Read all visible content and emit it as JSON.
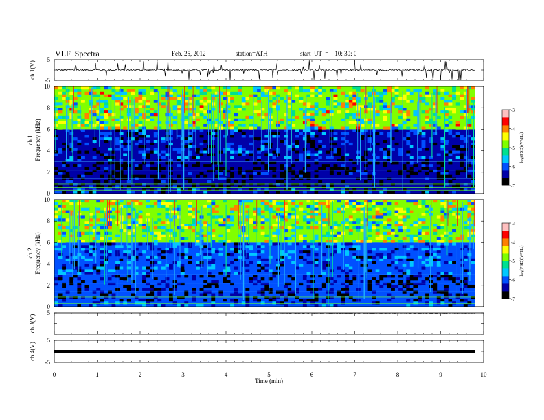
{
  "header": {
    "title": "VLF  Spectra",
    "date": "Feb. 25, 2012",
    "station": "station=ATH",
    "start": "start  UT  =    10: 30: 0"
  },
  "chart_data": [
    {
      "type": "line",
      "id": "ch1",
      "ylabel": "ch.1(V)",
      "ylim": [
        -5,
        5
      ],
      "yticks": [
        "5",
        "-5"
      ],
      "description_values": {
        "baseline": 0,
        "spike_max": 5,
        "spike_min": -5
      },
      "series": [
        {
          "values_summary": "noisy signal near 0 V with frequent spikes up to about ±5 V",
          "baseline": 0
        }
      ]
    },
    {
      "type": "heatmap",
      "id": "ch1-spectrogram",
      "ylabel_lines": [
        "ch.1",
        "Frequency  (kHz)"
      ],
      "ylim": [
        0,
        10
      ],
      "yticks": [
        "0",
        "2",
        "4",
        "6",
        "8",
        "10"
      ],
      "colorbar": {
        "label": "log(PSD)(V²/Hz)",
        "ticks": [
          "-3",
          "-4",
          "-5",
          "-6",
          "-7"
        ],
        "range": [
          -7,
          -3
        ],
        "colors": [
          "#000000",
          "#0000a8",
          "#0050ff",
          "#00c8ff",
          "#00e090",
          "#80ff00",
          "#ffff00",
          "#ff8000",
          "#ff0000",
          "#ffc0c0"
        ]
      },
      "bands_khz": [
        {
          "from": 6,
          "to": 10,
          "level": -4.8
        },
        {
          "from": 0,
          "to": 6,
          "level": -6.4
        }
      ]
    },
    {
      "type": "heatmap",
      "id": "ch2-spectrogram",
      "ylabel_lines": [
        "ch.2",
        "Frequency  (kHz)"
      ],
      "ylim": [
        0,
        10
      ],
      "yticks": [
        "0",
        "2",
        "4",
        "6",
        "8",
        "10"
      ],
      "colorbar": {
        "label": "log(PSD)(V²/Hz)",
        "ticks": [
          "-3",
          "-4",
          "-5",
          "-6",
          "-7"
        ],
        "range": [
          -7,
          -3
        ]
      },
      "bands_khz": [
        {
          "from": 6,
          "to": 10,
          "level": -4.9
        },
        {
          "from": 0,
          "to": 6,
          "level": -6.2
        }
      ]
    },
    {
      "type": "line",
      "id": "ch3",
      "ylabel": "ch.3(V)",
      "ylim": [
        -5,
        5
      ],
      "yticks": [
        "5"
      ],
      "series": [
        {
          "values_summary": "flat trace near +5 V from about 4.3 min to end",
          "level": 5,
          "x_start": 4.3,
          "x_end": 9.8
        }
      ]
    },
    {
      "type": "line",
      "id": "ch4",
      "ylabel": "ch.4(V)",
      "ylim": [
        -5,
        5
      ],
      "yticks": [
        "5",
        "-5"
      ],
      "series": [
        {
          "values_summary": "thick flat trace at about 0 V across the full span",
          "level": 0,
          "x_start": 0,
          "x_end": 9.8
        }
      ]
    }
  ],
  "xaxis": {
    "label": "Time  (min)",
    "ticks": [
      "0",
      "1",
      "2",
      "3",
      "4",
      "5",
      "6",
      "7",
      "8",
      "9",
      "10"
    ],
    "xlim": [
      0,
      10
    ]
  }
}
